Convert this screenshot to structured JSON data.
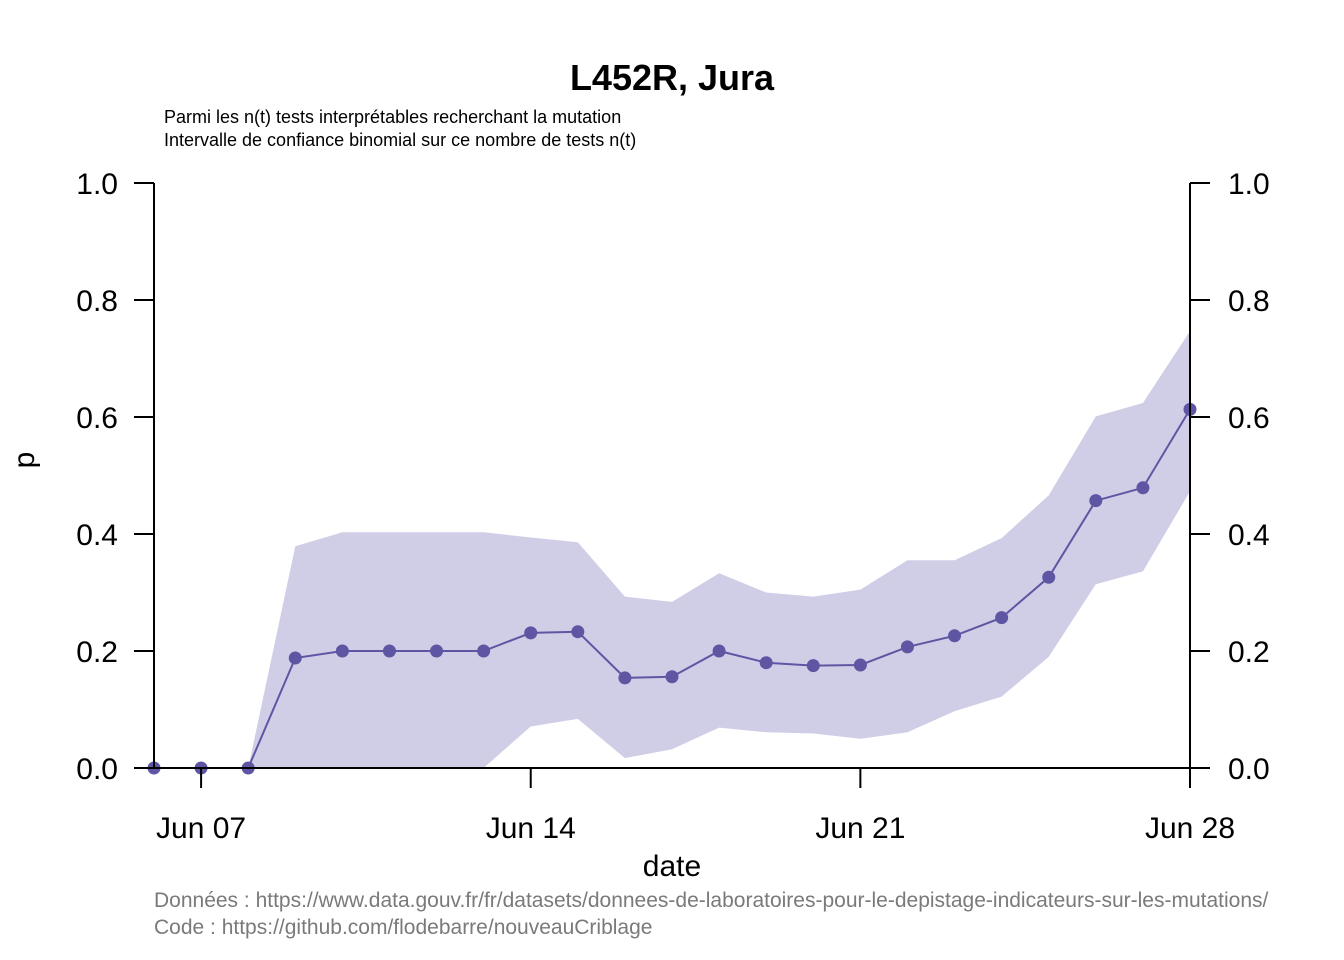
{
  "chart_data": {
    "type": "line",
    "title": "L452R, Jura",
    "subtitle_lines": [
      "Parmi les n(t) tests interprétables recherchant la mutation",
      "Intervalle de confiance binomial sur ce nombre de tests n(t)"
    ],
    "xlabel": "date",
    "ylabel": "p",
    "ylim": [
      0,
      1
    ],
    "y_ticks": [
      "0.0",
      "0.2",
      "0.4",
      "0.6",
      "0.8",
      "1.0"
    ],
    "y_tick_values": [
      0,
      0.2,
      0.4,
      0.6,
      0.8,
      1.0
    ],
    "x_ticks": [
      "Jun 07",
      "Jun 14",
      "Jun 21",
      "Jun 28"
    ],
    "x_tick_values": [
      "2021-06-07",
      "2021-06-14",
      "2021-06-21",
      "2021-06-28"
    ],
    "x": [
      "2021-06-06",
      "2021-06-07",
      "2021-06-08",
      "2021-06-09",
      "2021-06-10",
      "2021-06-11",
      "2021-06-12",
      "2021-06-13",
      "2021-06-14",
      "2021-06-15",
      "2021-06-16",
      "2021-06-17",
      "2021-06-18",
      "2021-06-19",
      "2021-06-20",
      "2021-06-21",
      "2021-06-22",
      "2021-06-23",
      "2021-06-24",
      "2021-06-25",
      "2021-06-26",
      "2021-06-27",
      "2021-06-28"
    ],
    "series": [
      {
        "values": [
          0.0,
          0.0,
          0.0,
          0.188,
          0.2,
          0.2,
          0.2,
          0.2,
          0.231,
          0.233,
          0.154,
          0.156,
          0.2,
          0.18,
          0.175,
          0.176,
          0.207,
          0.226,
          0.257,
          0.326,
          0.457,
          0.479,
          0.613
        ],
        "lower": [
          0.0,
          0.0,
          0.0,
          0.0,
          0.0,
          0.0,
          0.0,
          0.0,
          0.071,
          0.084,
          0.017,
          0.032,
          0.069,
          0.061,
          0.059,
          0.05,
          0.061,
          0.097,
          0.122,
          0.19,
          0.314,
          0.336,
          0.473
        ],
        "upper": [
          0.0,
          0.0,
          0.0,
          0.379,
          0.403,
          0.403,
          0.403,
          0.403,
          0.394,
          0.386,
          0.293,
          0.284,
          0.333,
          0.3,
          0.293,
          0.305,
          0.355,
          0.355,
          0.393,
          0.466,
          0.601,
          0.624,
          0.747
        ]
      }
    ],
    "line_color": "#5e56a3",
    "band_color": "#d0cee6",
    "caption_lines": [
      "Données : https://www.data.gouv.fr/fr/datasets/donnees-de-laboratoires-pour-le-depistage-indicateurs-sur-les-mutations/",
      "Code : https://github.com/flodebarre/nouveauCriblage"
    ]
  }
}
